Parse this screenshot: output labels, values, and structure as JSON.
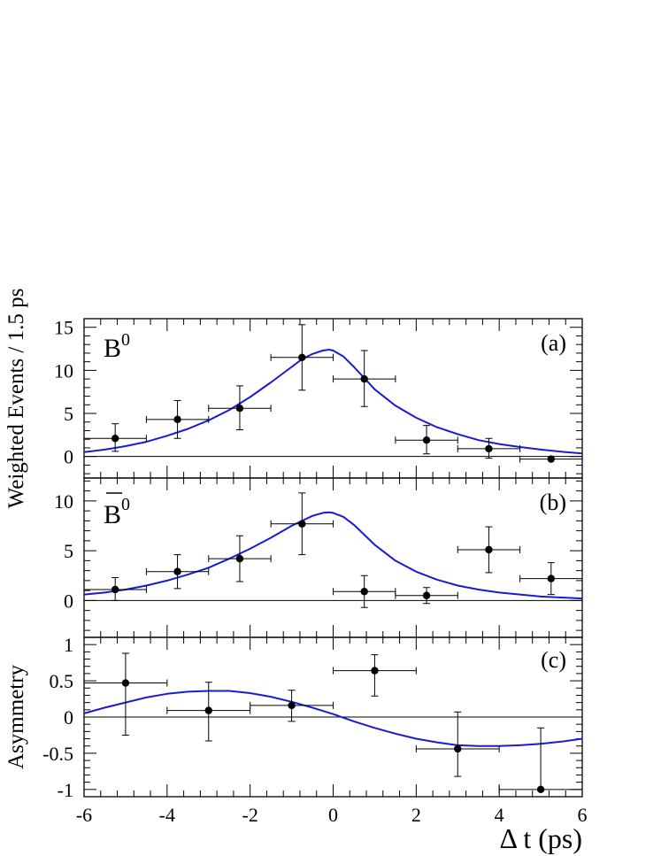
{
  "chart_data": [
    {
      "panel": "a",
      "type": "scatter",
      "panel_label": "(a)",
      "particle_label": "B",
      "particle_label_sup": "0",
      "particle_bar": false,
      "ylim": [
        -2.5,
        16
      ],
      "yticks": [
        0,
        5,
        10,
        15
      ],
      "ytick_labels": [
        "0",
        "5",
        "10",
        "15"
      ],
      "reference_y": 0,
      "points": [
        {
          "x": -5.25,
          "y": 2.1,
          "xerr": 0.75,
          "ylo": 0.6,
          "yhi": 3.8
        },
        {
          "x": -3.75,
          "y": 4.3,
          "xerr": 0.75,
          "ylo": 2.1,
          "yhi": 6.5
        },
        {
          "x": -2.25,
          "y": 5.6,
          "xerr": 0.75,
          "ylo": 3.1,
          "yhi": 8.2
        },
        {
          "x": -0.75,
          "y": 11.5,
          "xerr": 0.75,
          "ylo": 7.7,
          "yhi": 15.3
        },
        {
          "x": 0.75,
          "y": 9.0,
          "xerr": 0.75,
          "ylo": 5.8,
          "yhi": 12.3
        },
        {
          "x": 2.25,
          "y": 1.9,
          "xerr": 0.75,
          "ylo": 0.3,
          "yhi": 3.6
        },
        {
          "x": 3.75,
          "y": 0.9,
          "xerr": 0.75,
          "ylo": -0.2,
          "yhi": 2.1
        },
        {
          "x": 5.25,
          "y": -0.3,
          "xerr": 0.75,
          "ylo": -0.3,
          "yhi": -0.3
        }
      ],
      "curve": {
        "x": [
          -6,
          -5.5,
          -5,
          -4.5,
          -4,
          -3.5,
          -3,
          -2.5,
          -2,
          -1.5,
          -1,
          -0.75,
          -0.5,
          -0.25,
          -0.1,
          0,
          0.25,
          0.5,
          0.75,
          1,
          1.5,
          2,
          2.5,
          3,
          3.5,
          4,
          4.5,
          5,
          5.5,
          6
        ],
        "y": [
          0.5,
          0.8,
          1.2,
          1.7,
          2.4,
          3.2,
          4.2,
          5.4,
          6.9,
          8.6,
          10.4,
          11.3,
          11.9,
          12.3,
          12.4,
          12.3,
          11.6,
          10.4,
          9.1,
          7.8,
          5.9,
          4.5,
          3.4,
          2.6,
          1.9,
          1.45,
          1.1,
          0.8,
          0.55,
          0.35
        ]
      }
    },
    {
      "panel": "b",
      "type": "scatter",
      "panel_label": "(b)",
      "particle_label": "B",
      "particle_label_sup": "0",
      "particle_bar": true,
      "ylim": [
        -3.7,
        12.3
      ],
      "yticks": [
        0,
        5,
        10
      ],
      "ytick_labels": [
        "0",
        "5",
        "10"
      ],
      "reference_y": 0,
      "points": [
        {
          "x": -5.25,
          "y": 1.1,
          "xerr": 0.75,
          "ylo": 0.0,
          "yhi": 2.3
        },
        {
          "x": -3.75,
          "y": 2.9,
          "xerr": 0.75,
          "ylo": 1.2,
          "yhi": 4.6
        },
        {
          "x": -2.25,
          "y": 4.2,
          "xerr": 0.75,
          "ylo": 1.9,
          "yhi": 6.5
        },
        {
          "x": -0.75,
          "y": 7.7,
          "xerr": 0.75,
          "ylo": 4.6,
          "yhi": 10.8
        },
        {
          "x": 0.75,
          "y": 0.9,
          "xerr": 0.75,
          "ylo": -0.7,
          "yhi": 2.5
        },
        {
          "x": 2.25,
          "y": 0.5,
          "xerr": 0.75,
          "ylo": -0.3,
          "yhi": 1.3
        },
        {
          "x": 3.75,
          "y": 5.1,
          "xerr": 0.75,
          "ylo": 2.8,
          "yhi": 7.4
        },
        {
          "x": 5.25,
          "y": 2.2,
          "xerr": 0.75,
          "ylo": 0.6,
          "yhi": 3.8
        }
      ],
      "curve": {
        "x": [
          -6,
          -5.5,
          -5,
          -4.5,
          -4,
          -3.5,
          -3,
          -2.5,
          -2,
          -1.5,
          -1,
          -0.75,
          -0.5,
          -0.25,
          -0.1,
          0,
          0.25,
          0.5,
          0.75,
          1,
          1.5,
          2,
          2.5,
          3,
          3.5,
          4,
          4.5,
          5,
          5.5,
          6
        ],
        "y": [
          0.6,
          0.8,
          1.1,
          1.5,
          2.0,
          2.6,
          3.3,
          4.2,
          5.2,
          6.3,
          7.5,
          8.0,
          8.5,
          8.8,
          8.85,
          8.8,
          8.4,
          7.6,
          6.6,
          5.6,
          4.0,
          2.9,
          2.1,
          1.5,
          1.1,
          0.8,
          0.6,
          0.4,
          0.3,
          0.2
        ]
      }
    },
    {
      "panel": "c",
      "type": "scatter",
      "panel_label": "(c)",
      "ylabel": "Asymmetry",
      "ylim": [
        -1.1,
        1.1
      ],
      "yticks": [
        -1,
        -0.5,
        0,
        0.5,
        1
      ],
      "ytick_labels": [
        "-1",
        "-0.5",
        "0",
        "0.5",
        "1"
      ],
      "reference_y": 0,
      "xlim": [
        -6,
        6
      ],
      "xticks": [
        -6,
        -4,
        -2,
        0,
        2,
        4,
        6
      ],
      "xtick_labels": [
        "-6",
        "-4",
        "-2",
        "0",
        "2",
        "4",
        "6"
      ],
      "points": [
        {
          "x": -5.0,
          "y": 0.47,
          "xerr": 1.0,
          "ylo": -0.25,
          "yhi": 0.88
        },
        {
          "x": -3.0,
          "y": 0.09,
          "xerr": 1.0,
          "ylo": -0.33,
          "yhi": 0.48
        },
        {
          "x": -1.0,
          "y": 0.16,
          "xerr": 1.0,
          "ylo": -0.06,
          "yhi": 0.37
        },
        {
          "x": 1.0,
          "y": 0.64,
          "xerr": 1.0,
          "ylo": 0.29,
          "yhi": 0.86
        },
        {
          "x": 3.0,
          "y": -0.44,
          "xerr": 1.0,
          "ylo": -0.82,
          "yhi": 0.07
        },
        {
          "x": 5.0,
          "y": -1.0,
          "xerr": 1.0,
          "ylo": -1.0,
          "yhi": -0.15
        }
      ],
      "curve": {
        "x": [
          -6,
          -5.5,
          -5,
          -4.5,
          -4,
          -3.5,
          -3,
          -2.5,
          -2,
          -1.5,
          -1,
          -0.5,
          0,
          0.5,
          1,
          1.5,
          2,
          2.5,
          3,
          3.5,
          4,
          4.5,
          5,
          5.5,
          6
        ],
        "y": [
          0.05,
          0.13,
          0.2,
          0.27,
          0.32,
          0.35,
          0.36,
          0.36,
          0.33,
          0.28,
          0.21,
          0.13,
          0.04,
          -0.06,
          -0.15,
          -0.23,
          -0.3,
          -0.35,
          -0.39,
          -0.4,
          -0.4,
          -0.39,
          -0.37,
          -0.34,
          -0.3
        ]
      }
    }
  ],
  "shared": {
    "ylabel_top": "Weighted Events / 1.5 ps",
    "xlabel": "Δ t (ps)",
    "xlim": [
      -6,
      6
    ],
    "curve_color": "#1a1ad6",
    "marker_color": "#000000"
  }
}
